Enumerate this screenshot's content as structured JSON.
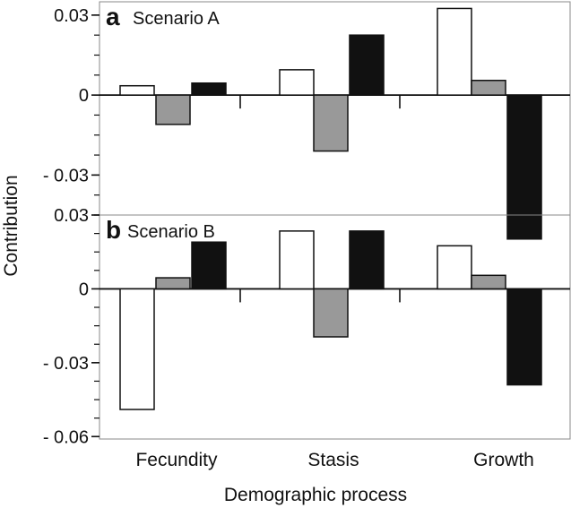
{
  "chart_data": {
    "type": "bar",
    "xlabel": "Demographic process",
    "ylabel": "Contribution",
    "categories": [
      "Fecundity",
      "Stasis",
      "Growth"
    ],
    "series_colors": [
      "#ffffff",
      "#999999",
      "#111111"
    ],
    "panels": [
      {
        "letter": "a",
        "title": "Scenario A",
        "ylim": [
          -0.045,
          0.035
        ],
        "yticks": [
          0.03,
          0,
          -0.03
        ],
        "ytick_labels": [
          "0.03",
          "0",
          "- 0.03"
        ],
        "values": [
          [
            0.0035,
            -0.011,
            0.0045
          ],
          [
            0.0095,
            -0.021,
            0.0225
          ],
          [
            0.0325,
            0.0055,
            -0.054
          ]
        ]
      },
      {
        "letter": "b",
        "title": "Scenario  B",
        "ylim": [
          -0.061,
          0.03
        ],
        "yticks": [
          0.03,
          0,
          -0.03,
          -0.06
        ],
        "ytick_labels": [
          "0.03",
          "0",
          "- 0.03",
          "- 0.06"
        ],
        "values": [
          [
            -0.049,
            0.0045,
            0.019
          ],
          [
            0.0235,
            -0.0195,
            0.0235
          ],
          [
            0.0175,
            0.0055,
            -0.039
          ]
        ]
      }
    ]
  }
}
